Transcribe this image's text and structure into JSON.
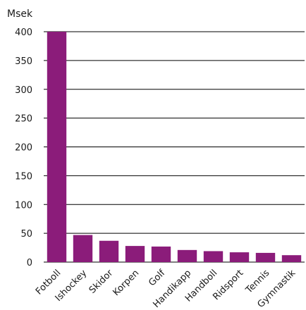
{
  "chart_data": {
    "type": "bar",
    "ylabel": "Msek",
    "categories": [
      "Fotboll",
      "Ishockey",
      "Skidor",
      "Korpen",
      "Golf",
      "Handikapp",
      "Handboll",
      "Ridsport",
      "Tennis",
      "Gymnastik"
    ],
    "values": [
      400,
      47,
      37,
      28,
      27,
      21,
      19,
      17,
      16,
      12
    ],
    "ylim": [
      0,
      400
    ],
    "yticks": [
      0,
      50,
      100,
      150,
      200,
      250,
      300,
      350,
      400
    ],
    "grid": true,
    "bar_color": "#8B1C7A"
  }
}
